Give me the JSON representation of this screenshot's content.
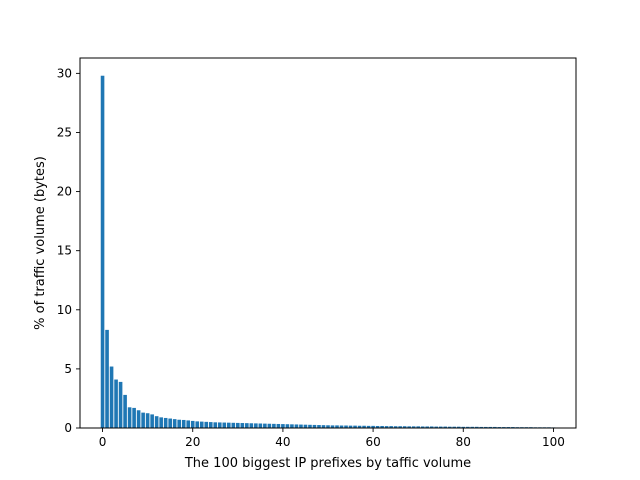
{
  "chart_data": {
    "type": "bar",
    "title": "",
    "xlabel": "The 100 biggest IP prefixes by taffic volume",
    "ylabel": "% of traffic volume (bytes)",
    "xlim": [
      -5,
      105
    ],
    "ylim": [
      0,
      31.3
    ],
    "xticks": [
      "0",
      "20",
      "40",
      "60",
      "80",
      "100"
    ],
    "yticks": [
      "0",
      "5",
      "10",
      "15",
      "20",
      "25",
      "30"
    ],
    "grid": false,
    "legend": "none",
    "bar_color": "#1f77b4",
    "x": [
      0,
      1,
      2,
      3,
      4,
      5,
      6,
      7,
      8,
      9,
      10,
      11,
      12,
      13,
      14,
      15,
      16,
      17,
      18,
      19,
      20,
      21,
      22,
      23,
      24,
      25,
      26,
      27,
      28,
      29,
      30,
      31,
      32,
      33,
      34,
      35,
      36,
      37,
      38,
      39,
      40,
      41,
      42,
      43,
      44,
      45,
      46,
      47,
      48,
      49,
      50,
      51,
      52,
      53,
      54,
      55,
      56,
      57,
      58,
      59,
      60,
      61,
      62,
      63,
      64,
      65,
      66,
      67,
      68,
      69,
      70,
      71,
      72,
      73,
      74,
      75,
      76,
      77,
      78,
      79,
      80,
      81,
      82,
      83,
      84,
      85,
      86,
      87,
      88,
      89,
      90,
      91,
      92,
      93,
      94,
      95,
      96,
      97,
      98,
      99,
      100
    ],
    "values": [
      29.8,
      8.3,
      5.2,
      4.1,
      3.9,
      2.8,
      1.75,
      1.7,
      1.5,
      1.3,
      1.25,
      1.15,
      1.0,
      0.9,
      0.85,
      0.8,
      0.75,
      0.7,
      0.68,
      0.64,
      0.6,
      0.56,
      0.54,
      0.52,
      0.5,
      0.48,
      0.47,
      0.46,
      0.45,
      0.44,
      0.43,
      0.42,
      0.41,
      0.4,
      0.39,
      0.38,
      0.37,
      0.36,
      0.35,
      0.34,
      0.33,
      0.32,
      0.31,
      0.3,
      0.29,
      0.28,
      0.27,
      0.26,
      0.25,
      0.24,
      0.23,
      0.22,
      0.22,
      0.21,
      0.21,
      0.2,
      0.2,
      0.19,
      0.19,
      0.18,
      0.18,
      0.17,
      0.17,
      0.16,
      0.16,
      0.15,
      0.15,
      0.15,
      0.14,
      0.14,
      0.14,
      0.13,
      0.13,
      0.13,
      0.12,
      0.12,
      0.12,
      0.11,
      0.11,
      0.11,
      0.1,
      0.1,
      0.1,
      0.1,
      0.09,
      0.09,
      0.09,
      0.09,
      0.08,
      0.08,
      0.08,
      0.08,
      0.07,
      0.07,
      0.07,
      0.07,
      0.06,
      0.06,
      0.06,
      0.06,
      0.05
    ]
  }
}
